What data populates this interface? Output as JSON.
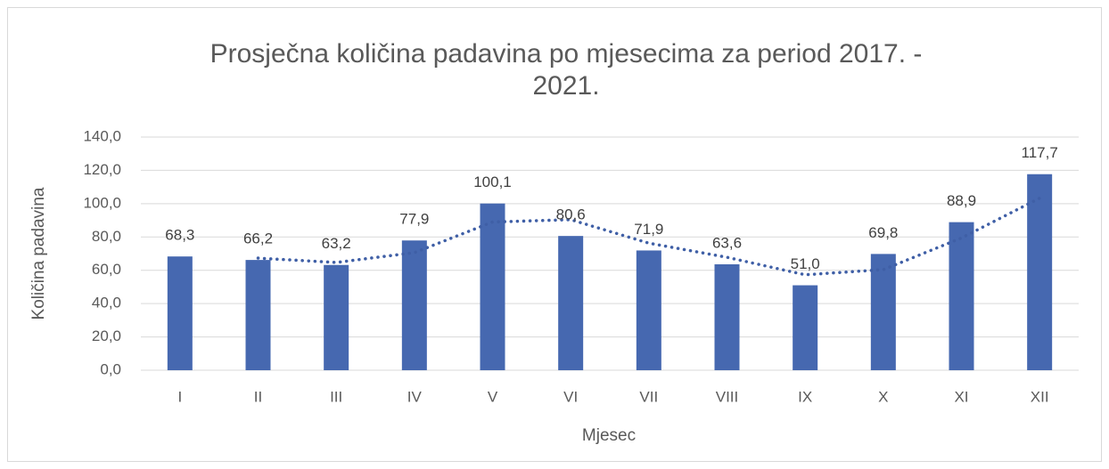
{
  "chart_data": {
    "type": "bar",
    "title": "Prosječna količina padavina po mjesecima za period 2017. - 2021.",
    "xlabel": "Mjesec",
    "ylabel": "Količina padavina",
    "categories": [
      "I",
      "II",
      "III",
      "IV",
      "V",
      "VI",
      "VII",
      "VIII",
      "IX",
      "X",
      "XI",
      "XII"
    ],
    "values": [
      68.3,
      66.2,
      63.2,
      77.9,
      100.1,
      80.6,
      71.9,
      63.6,
      51.0,
      69.8,
      88.9,
      117.7
    ],
    "value_labels": [
      "68,3",
      "66,2",
      "63,2",
      "77,9",
      "100,1",
      "80,6",
      "71,9",
      "63,6",
      "51,0",
      "69,8",
      "88,9",
      "117,7"
    ],
    "color": "#4668b0",
    "trendline": {
      "color": "#3f5fa6",
      "values": [
        null,
        67.3,
        64.7,
        70.6,
        89.0,
        90.4,
        76.3,
        67.8,
        57.3,
        60.4,
        79.4,
        103.3
      ]
    },
    "ylim": [
      0,
      140
    ],
    "yticks": [
      {
        "value": 0,
        "label": "0,0"
      },
      {
        "value": 20,
        "label": "20,0"
      },
      {
        "value": 40,
        "label": "40,0"
      },
      {
        "value": 60,
        "label": "60,0"
      },
      {
        "value": 80,
        "label": "80,0"
      },
      {
        "value": 100,
        "label": "100,0"
      },
      {
        "value": 120,
        "label": "120,0"
      },
      {
        "value": 140,
        "label": "140,0"
      }
    ],
    "grid": true
  }
}
